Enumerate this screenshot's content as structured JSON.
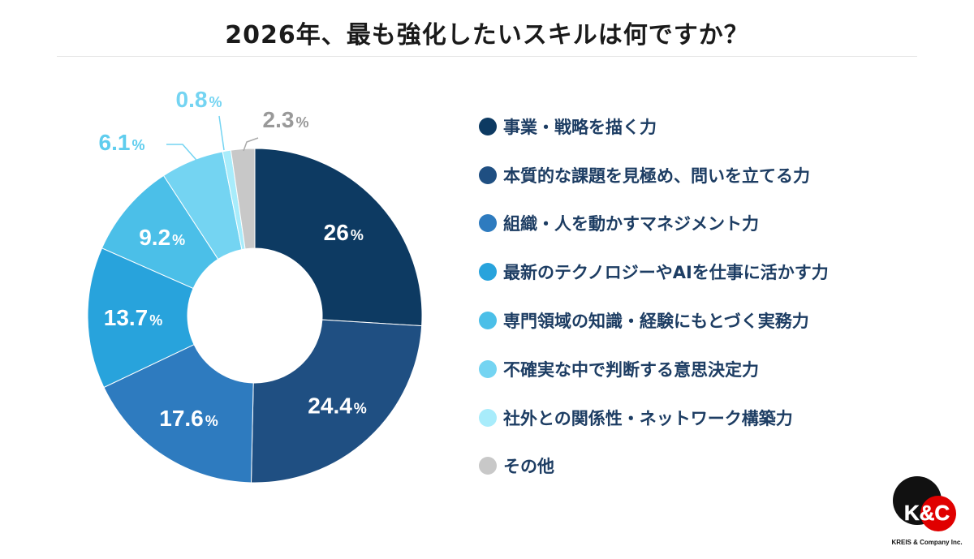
{
  "chart_data": {
    "type": "pie",
    "donut": true,
    "title": "2026年、最も強化したいスキルは何ですか？",
    "categories": [
      "事業・戦略を描く力",
      "本質的な課題を見極め、問いを立てる力",
      "組織・人を動かすマネジメント力",
      "最新のテクノロジーやAIを仕事に活かす力",
      "専門領域の知識・経験にもとづく実務力",
      "不確実な中で判断する意思決定力",
      "社外との関係性・ネットワーク構築力",
      "その他"
    ],
    "values": [
      26,
      24.4,
      17.6,
      13.7,
      9.2,
      6.1,
      0.8,
      2.3
    ],
    "labels": [
      "26",
      "24.4",
      "17.6",
      "13.7",
      "9.2",
      "6.1",
      "0.8",
      "2.3"
    ],
    "unit": "%",
    "colors": [
      "#0d3a62",
      "#1f4f82",
      "#2e7bbf",
      "#28a3dc",
      "#4bbfe8",
      "#74d4f2",
      "#a8ecfb",
      "#c8c8c8"
    ],
    "legend_placement": "right"
  },
  "logo": {
    "text": "K&C",
    "company": "KREIS & Company Inc."
  }
}
